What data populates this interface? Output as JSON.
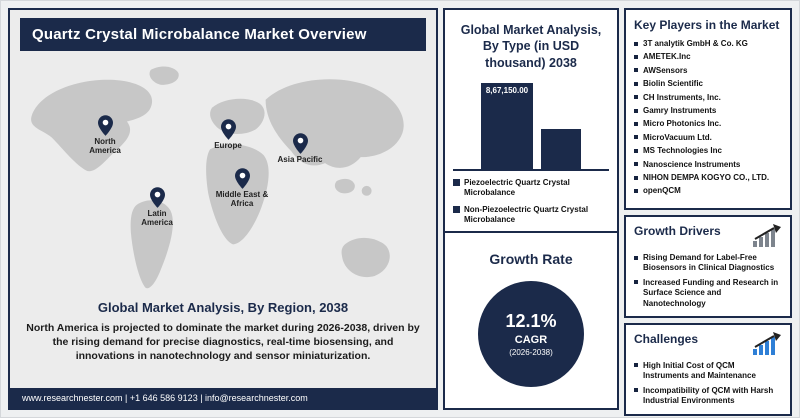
{
  "colors": {
    "navy": "#1b2a4a",
    "map_gray": "#c7c7c7",
    "challenge_blue": "#2e7fd6"
  },
  "left_panel": {
    "title": "Quartz Crystal Microbalance Market Overview",
    "regions": [
      {
        "label": "North America"
      },
      {
        "label": "Latin America"
      },
      {
        "label": "Europe"
      },
      {
        "label": "Middle East & Africa"
      },
      {
        "label": "Asia Pacific"
      }
    ],
    "caption": "Global Market Analysis, By Region, 2038",
    "description": "North America is projected to dominate the market during 2026-2038, driven by the rising demand for precise diagnostics, real-time biosensing, and innovations in nanotechnology and sensor miniaturization.",
    "footer": "www.researchnester.com | +1 646 586 9123 | info@researchnester.com"
  },
  "type_chart": {
    "title": "Global Market Analysis, By Type (in USD thousand) 2038",
    "chart_data": {
      "type": "bar",
      "categories": [
        "Piezoelectric Quartz Crystal Microbalance",
        "Non-Piezoelectric Quartz Crystal Microbalance"
      ],
      "values": [
        867150,
        400000
      ],
      "value_labels": [
        "8,67,150.00",
        ""
      ],
      "ylabel": "USD thousand",
      "legend_position": "bottom-left"
    }
  },
  "growth_rate": {
    "title": "Growth Rate",
    "value": "12.1%",
    "metric": "CAGR",
    "period": "(2026-2038)"
  },
  "key_players": {
    "title": "Key Players in the Market",
    "items": [
      "3T analytik GmbH & Co. KG",
      "AMETEK.Inc",
      "AWSensors",
      "Biolin Scientific",
      "CH Instruments, Inc.",
      "Gamry Instruments",
      "Micro Photonics Inc.",
      "MicroVacuum Ltd.",
      "MS Technologies Inc",
      "Nanoscience Instruments",
      "NIHON DEMPA KOGYO CO., LTD.",
      "openQCM"
    ]
  },
  "growth_drivers": {
    "title": "Growth Drivers",
    "items": [
      "Rising Demand for Label-Free Biosensors in Clinical Diagnostics",
      "Increased Funding and Research in Surface Science and Nanotechnology"
    ]
  },
  "challenges": {
    "title": "Challenges",
    "items": [
      "High Initial Cost of QCM Instruments and Maintenance",
      "Incompatibility of QCM with Harsh Industrial Environments"
    ]
  }
}
